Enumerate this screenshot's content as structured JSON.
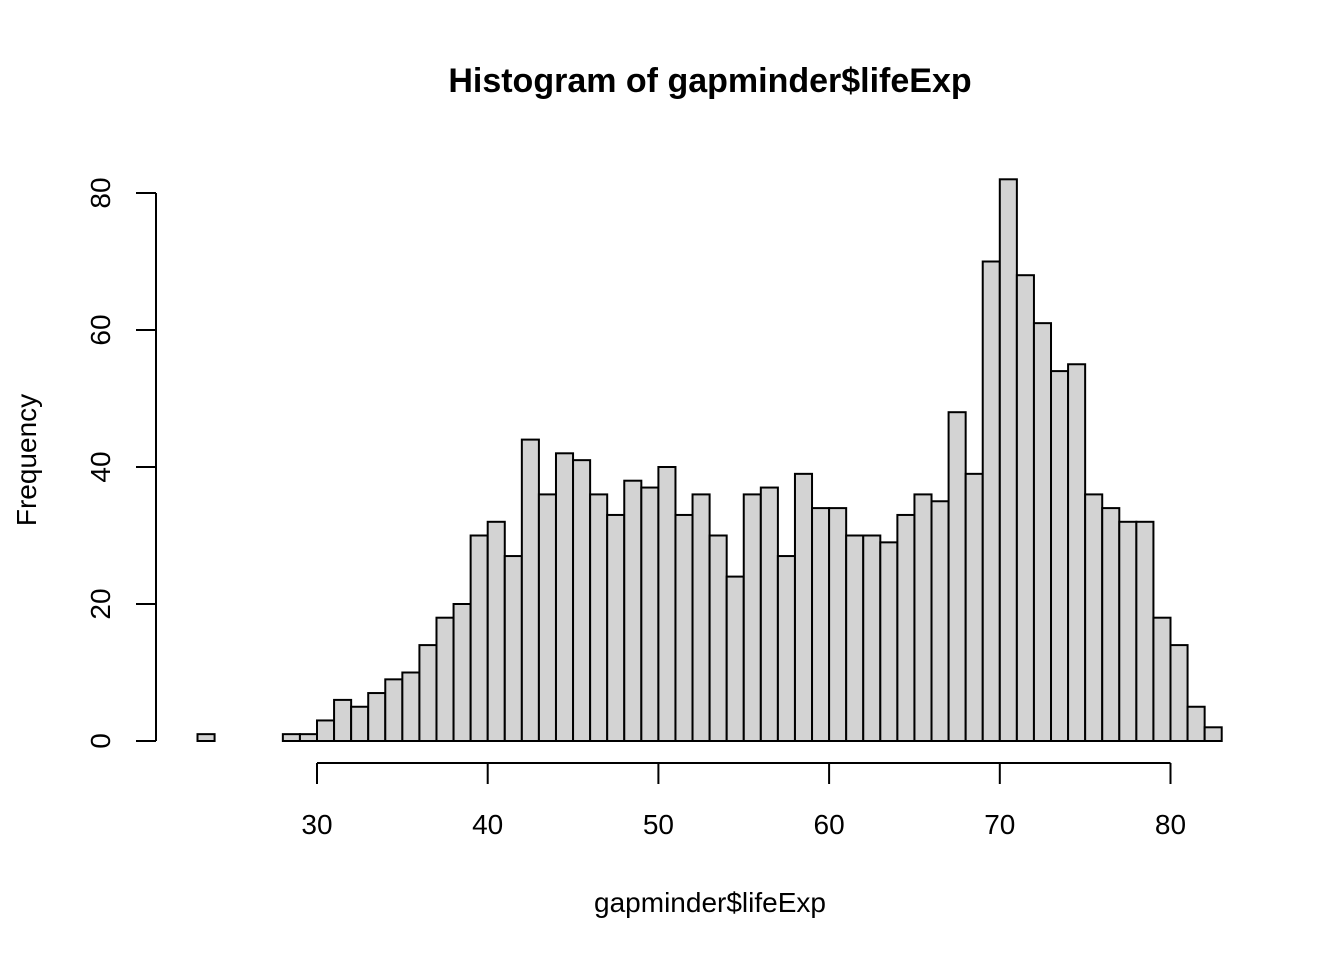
{
  "chart_data": {
    "type": "bar",
    "title": "Histogram of gapminder$lifeExp",
    "xlabel": "gapminder$lifeExp",
    "ylabel": "Frequency",
    "bin_width": 1,
    "bins_start": [
      23,
      24,
      25,
      26,
      27,
      28,
      29,
      30,
      31,
      32,
      33,
      34,
      35,
      36,
      37,
      38,
      39,
      40,
      41,
      42,
      43,
      44,
      45,
      46,
      47,
      48,
      49,
      50,
      51,
      52,
      53,
      54,
      55,
      56,
      57,
      58,
      59,
      60,
      61,
      62,
      63,
      64,
      65,
      66,
      67,
      68,
      69,
      70,
      71,
      72,
      73,
      74,
      75,
      76,
      77,
      78,
      79,
      80,
      81,
      82
    ],
    "values": [
      1,
      0,
      0,
      0,
      0,
      1,
      1,
      3,
      6,
      5,
      7,
      9,
      10,
      14,
      18,
      20,
      30,
      32,
      27,
      44,
      36,
      42,
      41,
      36,
      33,
      38,
      37,
      40,
      33,
      36,
      30,
      24,
      36,
      37,
      27,
      39,
      34,
      34,
      30,
      30,
      29,
      33,
      36,
      35,
      48,
      39,
      70,
      82,
      68,
      61,
      54,
      55,
      36,
      34,
      32,
      32,
      18,
      14,
      5,
      2
    ],
    "x_ticks": [
      "30",
      "40",
      "50",
      "60",
      "70",
      "80"
    ],
    "y_ticks": [
      "0",
      "20",
      "40",
      "60",
      "80"
    ],
    "xlim": [
      30,
      80
    ],
    "ylim": [
      0,
      80
    ],
    "bar_color": "#d3d3d3",
    "grid": false
  }
}
